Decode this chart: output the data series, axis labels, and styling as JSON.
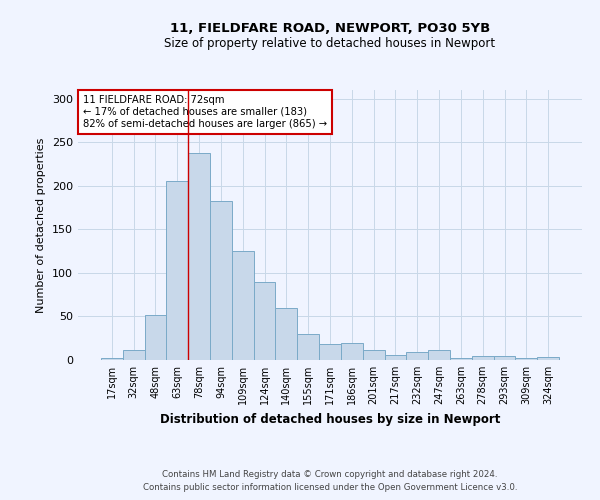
{
  "title1": "11, FIELDFARE ROAD, NEWPORT, PO30 5YB",
  "title2": "Size of property relative to detached houses in Newport",
  "xlabel": "Distribution of detached houses by size in Newport",
  "ylabel": "Number of detached properties",
  "categories": [
    "17sqm",
    "32sqm",
    "48sqm",
    "63sqm",
    "78sqm",
    "94sqm",
    "109sqm",
    "124sqm",
    "140sqm",
    "155sqm",
    "171sqm",
    "186sqm",
    "201sqm",
    "217sqm",
    "232sqm",
    "247sqm",
    "263sqm",
    "278sqm",
    "293sqm",
    "309sqm",
    "324sqm"
  ],
  "values": [
    2,
    12,
    52,
    205,
    238,
    183,
    125,
    90,
    60,
    30,
    18,
    19,
    11,
    6,
    9,
    11,
    2,
    5,
    5,
    2,
    3
  ],
  "bar_color": "#c8d8ea",
  "bar_edge_color": "#7aaac8",
  "vline_x": 3.5,
  "annotation_line1": "11 FIELDFARE ROAD: 72sqm",
  "annotation_line2": "← 17% of detached houses are smaller (183)",
  "annotation_line3": "82% of semi-detached houses are larger (865) →",
  "annotation_box_color": "white",
  "annotation_box_edge_color": "#cc0000",
  "vline_color": "#cc0000",
  "ylim": [
    0,
    310
  ],
  "yticks": [
    0,
    50,
    100,
    150,
    200,
    250,
    300
  ],
  "footer1": "Contains HM Land Registry data © Crown copyright and database right 2024.",
  "footer2": "Contains public sector information licensed under the Open Government Licence v3.0.",
  "bg_color": "#f0f4ff",
  "grid_color": "#c8d8e8"
}
